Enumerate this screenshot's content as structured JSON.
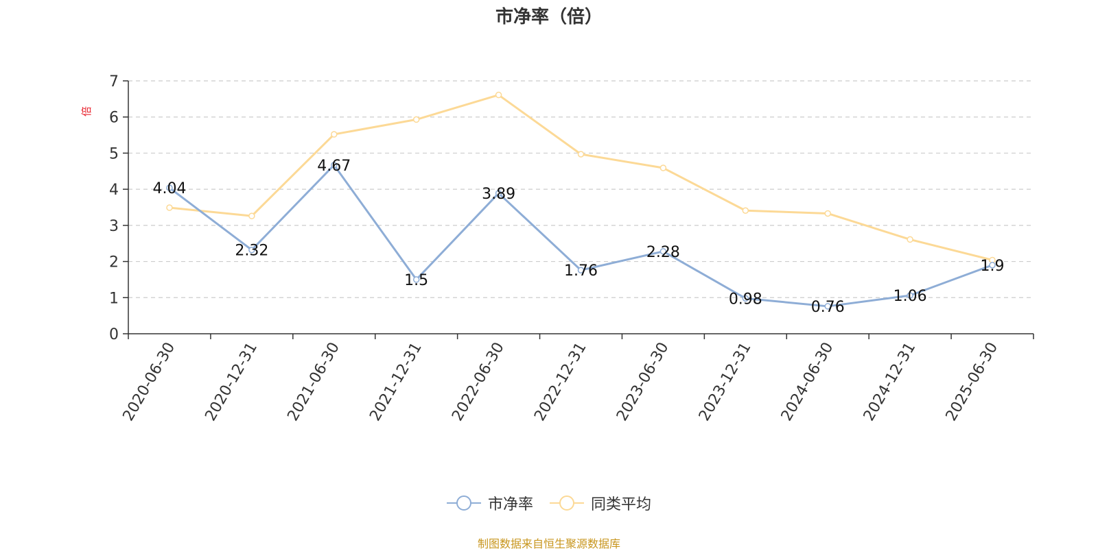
{
  "chart_data": {
    "type": "line",
    "title": "市净率（倍）",
    "ylabel": "倍",
    "xlabel": "",
    "ylim": [
      0,
      7
    ],
    "yticks": [
      0,
      1,
      2,
      3,
      4,
      5,
      6,
      7
    ],
    "grid": true,
    "legend_position": "bottom",
    "categories": [
      "2020-06-30",
      "2020-12-31",
      "2021-06-30",
      "2021-12-31",
      "2022-06-30",
      "2022-12-31",
      "2023-06-30",
      "2023-12-31",
      "2024-06-30",
      "2024-12-31",
      "2025-06-30"
    ],
    "series": [
      {
        "name": "市净率",
        "color": "#8eadd6",
        "show_labels": true,
        "values": [
          4.04,
          2.32,
          4.67,
          1.5,
          3.89,
          1.76,
          2.28,
          0.98,
          0.76,
          1.06,
          1.9
        ]
      },
      {
        "name": "同类平均",
        "color": "#fcd996",
        "show_labels": false,
        "values": [
          3.49,
          3.26,
          5.52,
          5.93,
          6.61,
          4.97,
          4.59,
          3.41,
          3.33,
          2.61,
          2.04
        ]
      }
    ]
  },
  "source_text": "制图数据来自恒生聚源数据库"
}
